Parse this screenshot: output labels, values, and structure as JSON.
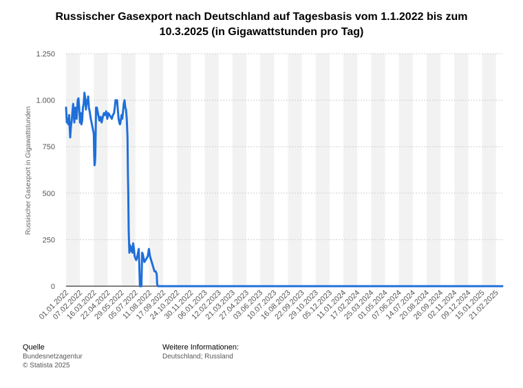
{
  "title_line1": "Russischer Gasexport nach Deutschland auf Tagesbasis vom 1.1.2022 bis zum",
  "title_line2": "10.3.2025 (in Gigawattstunden pro Tag)",
  "footer": {
    "source_heading": "Quelle",
    "source_line1": "Bundesnetzagentur",
    "source_line2": "© Statista 2025",
    "info_heading": "Weitere Informationen:",
    "info_line1": "Deutschland; Russland"
  },
  "colors": {
    "line": "#1f6fd9",
    "band": "#f2f2f2",
    "grid": "#cfcfcf",
    "axis": "#000000",
    "tick_text": "#555555"
  },
  "chart_data": {
    "type": "line",
    "title": "Russischer Gasexport nach Deutschland auf Tagesbasis vom 1.1.2022 bis zum 10.3.2025 (in Gigawattstunden pro Tag)",
    "ylabel": "Russischer Gasexport in Gigawattstunden",
    "xlabel": "",
    "ylim": [
      0,
      1250
    ],
    "xlim": [
      "2022-01-01",
      "2025-03-10"
    ],
    "y_ticks": [
      0,
      250,
      500,
      750,
      1000,
      1250
    ],
    "y_tick_labels": [
      "0",
      "250",
      "500",
      "750",
      "1.000",
      "1.250"
    ],
    "x_ticks": [
      "2022-01-01",
      "2022-02-07",
      "2022-03-16",
      "2022-04-22",
      "2022-05-29",
      "2022-07-05",
      "2022-08-11",
      "2022-09-17",
      "2022-10-24",
      "2022-11-30",
      "2023-01-06",
      "2023-02-12",
      "2023-03-21",
      "2023-04-27",
      "2023-06-03",
      "2023-07-10",
      "2023-08-16",
      "2023-09-22",
      "2023-10-29",
      "2023-12-05",
      "2024-01-11",
      "2024-02-17",
      "2024-03-25",
      "2024-05-01",
      "2024-06-07",
      "2024-07-14",
      "2024-08-20",
      "2024-09-26",
      "2024-11-02",
      "2024-12-09",
      "2025-01-15",
      "2025-02-21"
    ],
    "x_tick_labels": [
      "01.01.2022",
      "07.02.2022",
      "16.03.2022",
      "22.04.2022",
      "29.05.2022",
      "05.07.2022",
      "11.08.2022",
      "17.09.2022",
      "24.10.2022",
      "30.11.2022",
      "06.01.2023",
      "12.02.2023",
      "21.03.2023",
      "27.04.2023",
      "03.06.2023",
      "10.07.2023",
      "16.08.2023",
      "22.09.2023",
      "29.10.2023",
      "05.12.2023",
      "11.01.2024",
      "17.02.2024",
      "25.03.2024",
      "01.05.2024",
      "07.06.2024",
      "14.07.2024",
      "20.08.2024",
      "26.09.2024",
      "02.11.2024",
      "09.12.2024",
      "15.01.2025",
      "21.02.2025"
    ],
    "grid": true,
    "legend": "none",
    "series": [
      {
        "x": [
          "2022-01-01",
          "2022-01-03",
          "2022-01-05",
          "2022-01-07",
          "2022-01-09",
          "2022-01-12",
          "2022-01-14",
          "2022-01-16",
          "2022-01-18",
          "2022-01-20",
          "2022-01-23",
          "2022-01-26",
          "2022-01-29",
          "2022-02-01",
          "2022-02-03",
          "2022-02-05",
          "2022-02-07",
          "2022-02-09",
          "2022-02-11",
          "2022-02-13",
          "2022-02-15",
          "2022-02-17",
          "2022-02-19",
          "2022-02-21",
          "2022-02-23",
          "2022-02-25",
          "2022-02-27",
          "2022-03-01",
          "2022-03-03",
          "2022-03-05",
          "2022-03-08",
          "2022-03-10",
          "2022-03-12",
          "2022-03-14",
          "2022-03-16",
          "2022-03-17",
          "2022-03-18",
          "2022-03-19",
          "2022-03-20",
          "2022-03-22",
          "2022-03-24",
          "2022-03-26",
          "2022-03-28",
          "2022-03-31",
          "2022-04-03",
          "2022-04-06",
          "2022-04-09",
          "2022-04-12",
          "2022-04-15",
          "2022-04-18",
          "2022-04-21",
          "2022-04-24",
          "2022-04-27",
          "2022-04-30",
          "2022-05-03",
          "2022-05-06",
          "2022-05-09",
          "2022-05-11",
          "2022-05-13",
          "2022-05-15",
          "2022-05-17",
          "2022-05-19",
          "2022-05-21",
          "2022-05-23",
          "2022-05-25",
          "2022-05-27",
          "2022-05-29",
          "2022-05-31",
          "2022-06-02",
          "2022-06-04",
          "2022-06-06",
          "2022-06-08",
          "2022-06-10",
          "2022-06-12",
          "2022-06-14",
          "2022-06-15",
          "2022-06-16",
          "2022-06-17",
          "2022-06-19",
          "2022-06-21",
          "2022-06-23",
          "2022-06-25",
          "2022-06-27",
          "2022-06-29",
          "2022-07-01",
          "2022-07-03",
          "2022-07-05",
          "2022-07-07",
          "2022-07-09",
          "2022-07-11",
          "2022-07-14",
          "2022-07-17",
          "2022-07-19",
          "2022-07-21",
          "2022-07-23",
          "2022-07-25",
          "2022-07-27",
          "2022-07-29",
          "2022-08-01",
          "2022-08-04",
          "2022-08-07",
          "2022-08-10",
          "2022-08-13",
          "2022-08-16",
          "2022-08-19",
          "2022-08-22",
          "2022-08-25",
          "2022-08-28",
          "2022-08-30",
          "2022-08-31",
          "2022-09-01",
          "2022-09-03",
          "2022-09-05",
          "2022-09-15",
          "2022-10-01",
          "2022-12-01",
          "2023-06-01",
          "2024-01-01",
          "2024-06-01",
          "2025-01-01",
          "2025-03-10"
        ],
        "values": [
          960,
          880,
          900,
          870,
          920,
          800,
          860,
          890,
          940,
          980,
          880,
          960,
          900,
          1000,
          1010,
          960,
          880,
          930,
          870,
          890,
          960,
          980,
          1040,
          1010,
          950,
          1000,
          980,
          1020,
          960,
          940,
          900,
          880,
          860,
          840,
          820,
          700,
          650,
          660,
          700,
          960,
          960,
          940,
          920,
          890,
          910,
          880,
          910,
          930,
          920,
          940,
          900,
          930,
          920,
          910,
          900,
          920,
          930,
          960,
          1000,
          990,
          1000,
          950,
          900,
          880,
          870,
          890,
          920,
          900,
          940,
          980,
          1000,
          960,
          950,
          900,
          800,
          600,
          500,
          300,
          180,
          220,
          190,
          210,
          180,
          230,
          200,
          160,
          150,
          140,
          150,
          170,
          200,
          0,
          0,
          0,
          180,
          170,
          150,
          130,
          140,
          150,
          160,
          200,
          160,
          140,
          120,
          100,
          80,
          80,
          70,
          60,
          10,
          0,
          0,
          0,
          0,
          0,
          0,
          0,
          0,
          0,
          0
        ]
      }
    ]
  }
}
